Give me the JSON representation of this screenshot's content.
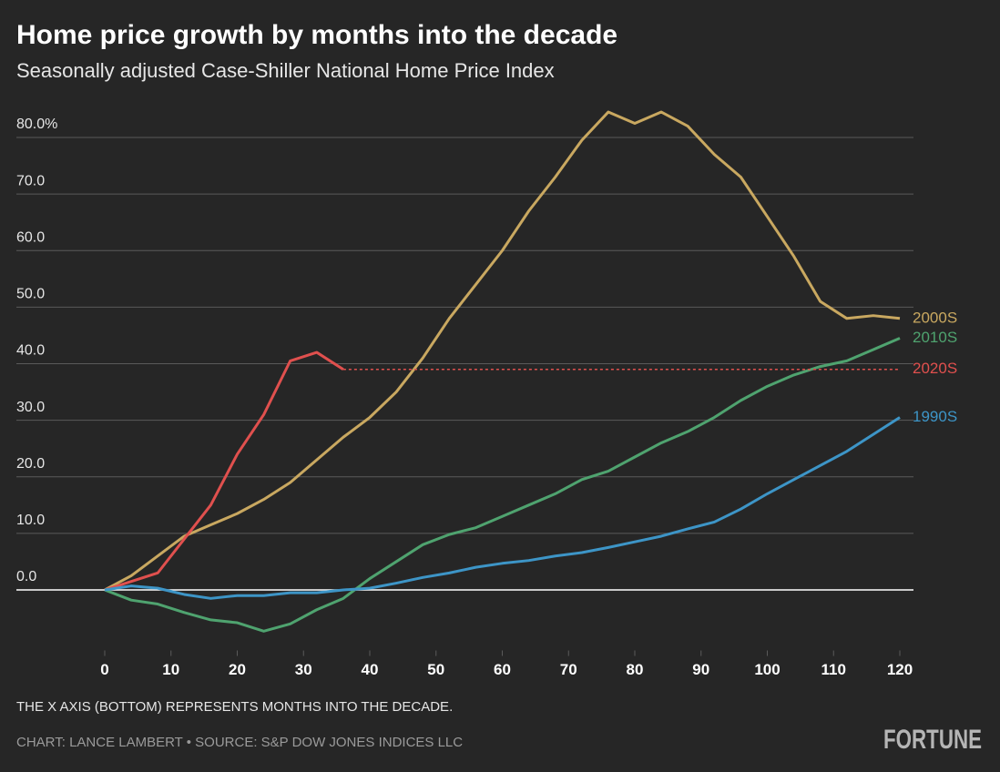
{
  "chart_data": {
    "type": "line",
    "title": "Home price growth by months into the decade",
    "subtitle": "Seasonally adjusted Case-Shiller National Home Price Index",
    "note": "THE X AXIS (BOTTOM) REPRESENTS MONTHS INTO THE DECADE.",
    "source": "CHART: LANCE LAMBERT • SOURCE: S&P DOW JONES INDICES LLC",
    "brand": "FORTUNE",
    "x": [
      0,
      4,
      8,
      12,
      16,
      20,
      24,
      28,
      32,
      36,
      40,
      44,
      48,
      52,
      56,
      60,
      64,
      68,
      72,
      76,
      80,
      84,
      88,
      92,
      96,
      100,
      104,
      108,
      112,
      116,
      120
    ],
    "series": [
      {
        "name": "2000S",
        "color": "#c9a860",
        "values": [
          0,
          2.5,
          6,
          9.5,
          11.5,
          13.5,
          16,
          19,
          23,
          27,
          30.5,
          35,
          41,
          48,
          54,
          60,
          67,
          73,
          79.5,
          84.5,
          82.5,
          84.5,
          82,
          77,
          73,
          66,
          59,
          51,
          48,
          48.5,
          48
        ]
      },
      {
        "name": "2010S",
        "color": "#4fa36f",
        "values": [
          0,
          -1.8,
          -2.5,
          -4,
          -5.3,
          -5.8,
          -7.3,
          -6,
          -3.5,
          -1.5,
          2,
          5,
          8,
          9.8,
          11,
          13,
          15,
          17,
          19.5,
          21,
          23.5,
          26,
          28,
          30.5,
          33.5,
          36,
          38,
          39.5,
          40.5,
          42.5,
          44.5
        ]
      },
      {
        "name": "2020S",
        "color": "#e0504e",
        "dashed_extension": true,
        "values": [
          0,
          1.5,
          3,
          9,
          15,
          24,
          31,
          40.5,
          42,
          39,
          null,
          null,
          null,
          null,
          null,
          null,
          null,
          null,
          null,
          null,
          null,
          null,
          null,
          null,
          null,
          null,
          null,
          null,
          null,
          null,
          null
        ]
      },
      {
        "name": "1990S",
        "color": "#3d95c7",
        "values": [
          0,
          0.7,
          0.3,
          -0.8,
          -1.5,
          -1,
          -1,
          -0.5,
          -0.5,
          0,
          0.3,
          1.2,
          2.2,
          3,
          4,
          4.7,
          5.2,
          6,
          6.6,
          7.5,
          8.5,
          9.5,
          10.8,
          12,
          14.3,
          17,
          19.5,
          22,
          24.5,
          27.5,
          30.5
        ]
      }
    ],
    "xlim": [
      0,
      120
    ],
    "xticks": [
      0,
      10,
      20,
      30,
      40,
      50,
      60,
      70,
      80,
      90,
      100,
      110,
      120
    ],
    "ylim": [
      -12,
      88
    ],
    "yticks": [
      {
        "value": 0,
        "label": "0.0"
      },
      {
        "value": 10,
        "label": "10.0"
      },
      {
        "value": 20,
        "label": "20.0"
      },
      {
        "value": 30,
        "label": "30.0"
      },
      {
        "value": 40,
        "label": "40.0"
      },
      {
        "value": 50,
        "label": "50.0"
      },
      {
        "value": 60,
        "label": "60.0"
      },
      {
        "value": 70,
        "label": "70.0"
      },
      {
        "value": 80,
        "label": "80.0%"
      }
    ],
    "grid": true,
    "background": "#262626"
  }
}
